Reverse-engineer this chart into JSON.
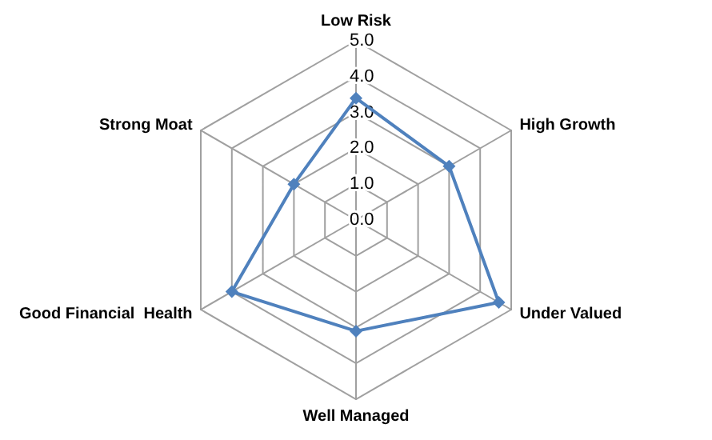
{
  "chart_data": {
    "type": "radar",
    "categories": [
      "Low Risk",
      "High Growth",
      "Under Valued",
      "Well Managed",
      "Good Financial  Health",
      "Strong Moat"
    ],
    "series": [
      {
        "color": "#4f81bd",
        "values": [
          3.4,
          3.0,
          4.6,
          3.1,
          4.0,
          2.0
        ]
      }
    ],
    "ylim": [
      0,
      5
    ],
    "yticks": [
      {
        "value": 0,
        "label": "0.0"
      },
      {
        "value": 1,
        "label": "1.0"
      },
      {
        "value": 2,
        "label": "2.0"
      },
      {
        "value": 3,
        "label": "3.0"
      },
      {
        "value": 4,
        "label": "4.0"
      },
      {
        "value": 5,
        "label": "5.0"
      }
    ],
    "marker": "diamond",
    "line_style": "solid",
    "grid": true
  }
}
